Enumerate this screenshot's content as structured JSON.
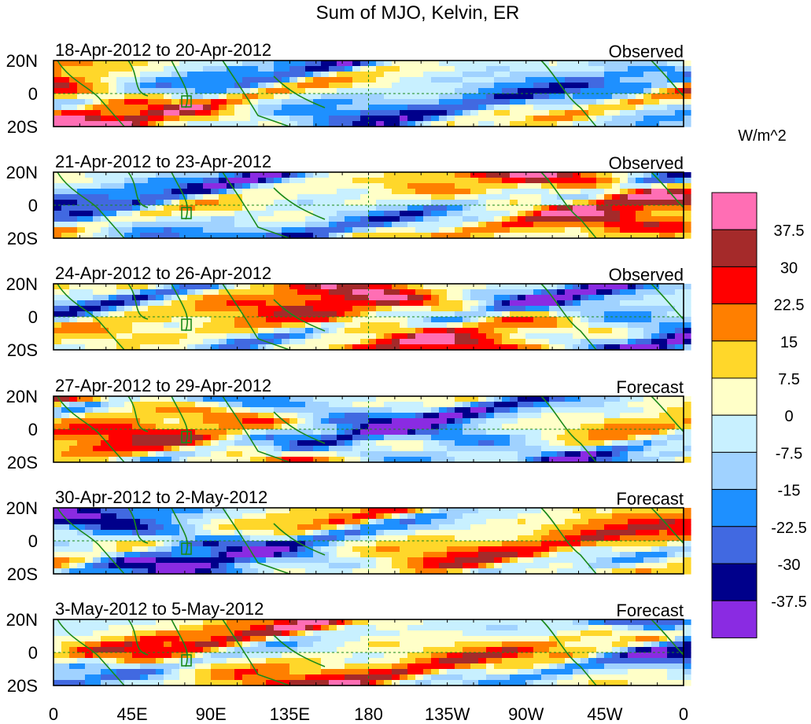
{
  "title": "Sum of MJO, Kelvin, ER",
  "units": "W/m^2",
  "latitude_labels": [
    "20N",
    "0",
    "20S"
  ],
  "longitude_labels": [
    "0",
    "45E",
    "90E",
    "135E",
    "180",
    "135W",
    "90W",
    "45W",
    "0"
  ],
  "panels": [
    {
      "dates": "18-Apr-2012 to 20-Apr-2012",
      "type": "Observed"
    },
    {
      "dates": "21-Apr-2012 to 23-Apr-2012",
      "type": "Observed"
    },
    {
      "dates": "24-Apr-2012 to 26-Apr-2012",
      "type": "Observed"
    },
    {
      "dates": "27-Apr-2012 to 29-Apr-2012",
      "type": "Forecast"
    },
    {
      "dates": "30-Apr-2012 to 2-May-2012",
      "type": "Forecast"
    },
    {
      "dates": "3-May-2012 to 5-May-2012",
      "type": "Forecast"
    }
  ],
  "colorbar": {
    "labels": [
      "37.5",
      "30",
      "22.5",
      "15",
      "7.5",
      "0",
      "-7.5",
      "-15",
      "-22.5",
      "-30",
      "-37.5"
    ],
    "colors": [
      "#ff6eb4",
      "#a52a2a",
      "#ff0000",
      "#ff7f00",
      "#ffd72a",
      "#ffffc8",
      "#c8f0ff",
      "#a0d2ff",
      "#1e90ff",
      "#4169e1",
      "#00008b",
      "#8a2be2"
    ]
  },
  "colors": {
    "coast": "#1a8a1a",
    "background": "#ffffff",
    "frame": "#000000"
  }
}
